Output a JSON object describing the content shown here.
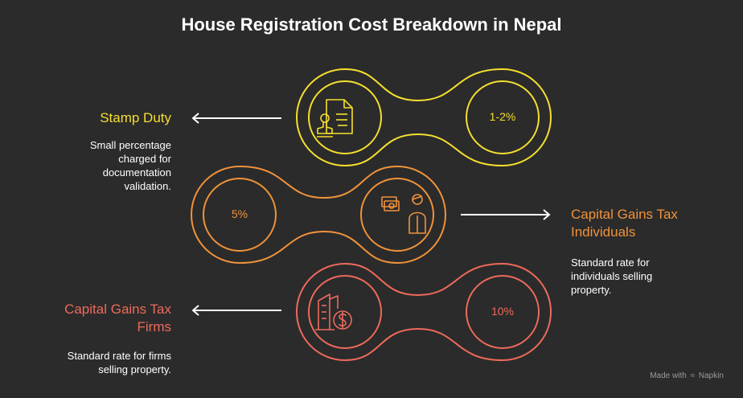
{
  "title": "House Registration Cost Breakdown in Nepal",
  "colors": {
    "background": "#2b2b2b",
    "stamp": "#f5df2f",
    "individuals": "#f0923a",
    "firms": "#ee6a5b"
  },
  "items": [
    {
      "heading": "Stamp Duty",
      "description_lines": [
        "Small percentage",
        "charged for",
        "documentation",
        "validation."
      ],
      "value": "1-2%",
      "icon": "document-stamp-icon"
    },
    {
      "heading_lines": [
        "Capital Gains Tax",
        "Individuals"
      ],
      "description_lines": [
        "Standard rate for",
        "individuals selling",
        "property."
      ],
      "value": "5%",
      "icon": "person-money-icon"
    },
    {
      "heading_lines": [
        "Capital Gains Tax",
        "Firms"
      ],
      "description_lines": [
        "Standard rate for firms",
        "selling property."
      ],
      "value": "10%",
      "icon": "building-dollar-icon"
    }
  ],
  "watermark": {
    "prefix": "Made with",
    "brand": "Napkin"
  }
}
